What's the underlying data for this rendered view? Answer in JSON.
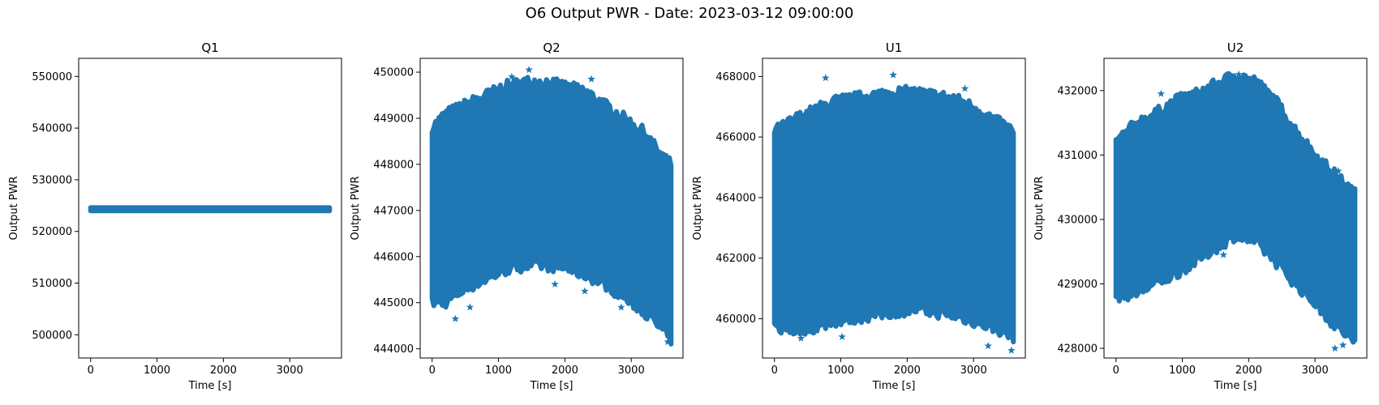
{
  "figure": {
    "suptitle": "O6 Output PWR - Date: 2023-03-12 09:00:00"
  },
  "chart_data": [
    {
      "type": "scatter",
      "title": "Q1",
      "xlabel": "Time [s]",
      "ylabel": "Output PWR",
      "marker": "star",
      "color": "#1f77b4",
      "xlim": [
        -180,
        3780
      ],
      "ylim": [
        495500,
        553500
      ],
      "xticks": [
        0,
        1000,
        2000,
        3000
      ],
      "yticks": [
        500000,
        510000,
        520000,
        530000,
        540000,
        550000
      ],
      "x_range": [
        0,
        3600
      ],
      "band_x": [
        0,
        3600
      ],
      "band_low": [
        524000,
        524000
      ],
      "band_high": [
        524600,
        524600
      ],
      "outliers": []
    },
    {
      "type": "scatter",
      "title": "Q2",
      "xlabel": "Time [s]",
      "ylabel": "Output PWR",
      "marker": "star",
      "color": "#1f77b4",
      "xlim": [
        -180,
        3780
      ],
      "ylim": [
        443800,
        450300
      ],
      "xticks": [
        0,
        1000,
        2000,
        3000
      ],
      "yticks": [
        444000,
        445000,
        446000,
        447000,
        448000,
        449000,
        450000
      ],
      "x_range": [
        0,
        3600
      ],
      "band_x": [
        0,
        200,
        500,
        800,
        1100,
        1400,
        1700,
        2000,
        2300,
        2600,
        2900,
        3200,
        3400,
        3600
      ],
      "band_low": [
        445000,
        445000,
        445300,
        445500,
        445700,
        445800,
        445800,
        445750,
        445600,
        445400,
        445100,
        444800,
        444500,
        444200
      ],
      "band_high": [
        448800,
        449100,
        449300,
        449500,
        449700,
        449800,
        449800,
        449700,
        449600,
        449300,
        449000,
        448700,
        448300,
        448000
      ],
      "outliers": [
        [
          350,
          444650
        ],
        [
          570,
          444900
        ],
        [
          1460,
          450050
        ],
        [
          2300,
          445250
        ],
        [
          1200,
          449900
        ],
        [
          2850,
          444900
        ],
        [
          3550,
          444150
        ],
        [
          1850,
          445400
        ],
        [
          2400,
          449850
        ]
      ]
    },
    {
      "type": "scatter",
      "title": "U1",
      "xlabel": "Time [s]",
      "ylabel": "Output PWR",
      "marker": "star",
      "color": "#1f77b4",
      "xlim": [
        -180,
        3780
      ],
      "ylim": [
        458700,
        468600
      ],
      "xticks": [
        0,
        1000,
        2000,
        3000
      ],
      "yticks": [
        460000,
        462000,
        464000,
        466000,
        468000
      ],
      "x_range": [
        0,
        3600
      ],
      "band_x": [
        0,
        300,
        600,
        900,
        1200,
        1500,
        1800,
        2100,
        2400,
        2700,
        3000,
        3300,
        3600
      ],
      "band_low": [
        459700,
        459600,
        459700,
        459900,
        460000,
        460100,
        460200,
        460300,
        460200,
        460100,
        459900,
        459700,
        459400
      ],
      "band_high": [
        466200,
        466600,
        466900,
        467200,
        467300,
        467400,
        467500,
        467500,
        467400,
        467300,
        467000,
        466600,
        466200
      ],
      "outliers": [
        [
          770,
          467950
        ],
        [
          1790,
          468050
        ],
        [
          1020,
          459400
        ],
        [
          3220,
          459100
        ],
        [
          3570,
          458950
        ],
        [
          2620,
          467200
        ],
        [
          2870,
          467600
        ],
        [
          400,
          459350
        ]
      ]
    },
    {
      "type": "scatter",
      "title": "U2",
      "xlabel": "Time [s]",
      "ylabel": "Output PWR",
      "marker": "star",
      "color": "#1f77b4",
      "xlim": [
        -180,
        3780
      ],
      "ylim": [
        427850,
        432500
      ],
      "xticks": [
        0,
        1000,
        2000,
        3000
      ],
      "yticks": [
        428000,
        429000,
        430000,
        431000,
        432000
      ],
      "x_range": [
        0,
        3600
      ],
      "band_x": [
        0,
        300,
        600,
        900,
        1200,
        1500,
        1800,
        2100,
        2400,
        2700,
        3000,
        3300,
        3600
      ],
      "band_low": [
        428800,
        428850,
        429000,
        429150,
        429350,
        429550,
        429750,
        429650,
        429350,
        429000,
        428700,
        428350,
        428100
      ],
      "band_high": [
        431200,
        431500,
        431650,
        431850,
        431950,
        432100,
        432250,
        432150,
        431850,
        431400,
        431000,
        430700,
        430400
      ],
      "outliers": [
        [
          3300,
          428000
        ],
        [
          3420,
          428050
        ],
        [
          1850,
          432250
        ],
        [
          1920,
          432200
        ],
        [
          680,
          431950
        ],
        [
          1620,
          429450
        ],
        [
          3350,
          430750
        ]
      ]
    }
  ]
}
